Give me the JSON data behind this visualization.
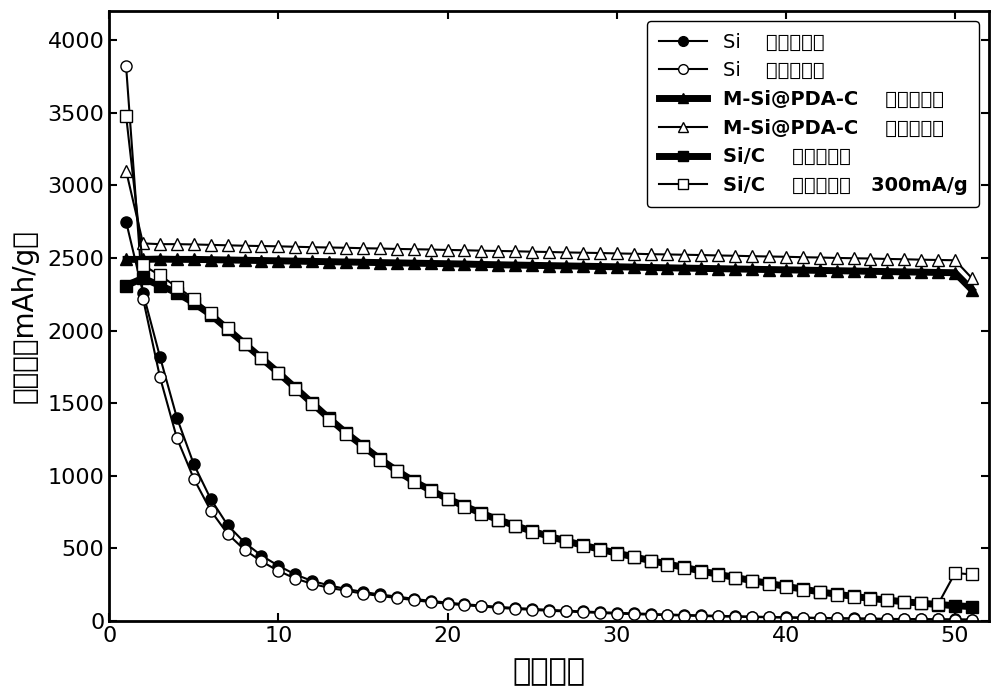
{
  "xlabel": "循环次数",
  "ylabel": "比容量（mAh/g）",
  "xlim": [
    0,
    52
  ],
  "ylim": [
    0,
    4200
  ],
  "xticks": [
    0,
    10,
    20,
    30,
    40,
    50
  ],
  "yticks": [
    0,
    500,
    1000,
    1500,
    2000,
    2500,
    3000,
    3500,
    4000
  ],
  "annotation": "300mA/g",
  "Si_charge_x": [
    1,
    2,
    3,
    4,
    5,
    6,
    7,
    8,
    9,
    10,
    11,
    12,
    13,
    14,
    15,
    16,
    17,
    18,
    19,
    20,
    21,
    22,
    23,
    24,
    25,
    26,
    27,
    28,
    29,
    30,
    31,
    32,
    33,
    34,
    35,
    36,
    37,
    38,
    39,
    40,
    41,
    42,
    43,
    44,
    45,
    46,
    47,
    48,
    49,
    50,
    51
  ],
  "Si_charge_y": [
    2750,
    2260,
    1820,
    1400,
    1080,
    840,
    660,
    540,
    450,
    380,
    320,
    275,
    245,
    220,
    200,
    182,
    168,
    152,
    138,
    126,
    115,
    106,
    97,
    89,
    83,
    76,
    71,
    65,
    60,
    56,
    52,
    48,
    44,
    41,
    38,
    35,
    32,
    30,
    27,
    25,
    23,
    21,
    19,
    17,
    16,
    14,
    13,
    12,
    11,
    10,
    9
  ],
  "Si_discharge_x": [
    1,
    2,
    3,
    4,
    5,
    6,
    7,
    8,
    9,
    10,
    11,
    12,
    13,
    14,
    15,
    16,
    17,
    18,
    19,
    20,
    21,
    22,
    23,
    24,
    25,
    26,
    27,
    28,
    29,
    30,
    31,
    32,
    33,
    34,
    35,
    36,
    37,
    38,
    39,
    40,
    41,
    42,
    43,
    44,
    45,
    46,
    47,
    48,
    49,
    50,
    51
  ],
  "Si_discharge_y": [
    3820,
    2220,
    1680,
    1260,
    980,
    760,
    600,
    490,
    410,
    345,
    292,
    255,
    228,
    208,
    188,
    172,
    158,
    143,
    130,
    118,
    108,
    100,
    90,
    83,
    76,
    70,
    65,
    60,
    55,
    50,
    47,
    43,
    40,
    37,
    34,
    31,
    29,
    27,
    25,
    23,
    21,
    19,
    17,
    16,
    14,
    13,
    12,
    11,
    10,
    9,
    8
  ],
  "MSi_charge_x": [
    1,
    2,
    3,
    4,
    5,
    6,
    7,
    8,
    9,
    10,
    11,
    12,
    13,
    14,
    15,
    16,
    17,
    18,
    19,
    20,
    21,
    22,
    23,
    24,
    25,
    26,
    27,
    28,
    29,
    30,
    31,
    32,
    33,
    34,
    35,
    36,
    37,
    38,
    39,
    40,
    41,
    42,
    43,
    44,
    45,
    46,
    47,
    48,
    49,
    50,
    51
  ],
  "MSi_charge_y": [
    2490,
    2490,
    2492,
    2490,
    2490,
    2488,
    2486,
    2484,
    2482,
    2480,
    2478,
    2476,
    2474,
    2472,
    2470,
    2468,
    2466,
    2464,
    2462,
    2460,
    2458,
    2455,
    2453,
    2451,
    2449,
    2447,
    2445,
    2443,
    2441,
    2439,
    2437,
    2434,
    2432,
    2430,
    2428,
    2426,
    2424,
    2422,
    2420,
    2418,
    2416,
    2414,
    2412,
    2410,
    2408,
    2406,
    2404,
    2402,
    2400,
    2398,
    2280
  ],
  "MSi_discharge_x": [
    1,
    2,
    3,
    4,
    5,
    6,
    7,
    8,
    9,
    10,
    11,
    12,
    13,
    14,
    15,
    16,
    17,
    18,
    19,
    20,
    21,
    22,
    23,
    24,
    25,
    26,
    27,
    28,
    29,
    30,
    31,
    32,
    33,
    34,
    35,
    36,
    37,
    38,
    39,
    40,
    41,
    42,
    43,
    44,
    45,
    46,
    47,
    48,
    49,
    50,
    51
  ],
  "MSi_discharge_y": [
    3100,
    2600,
    2595,
    2595,
    2593,
    2590,
    2587,
    2584,
    2582,
    2580,
    2577,
    2574,
    2572,
    2570,
    2567,
    2565,
    2562,
    2560,
    2558,
    2555,
    2553,
    2550,
    2548,
    2546,
    2543,
    2541,
    2538,
    2536,
    2534,
    2531,
    2529,
    2526,
    2524,
    2522,
    2520,
    2517,
    2515,
    2512,
    2510,
    2508,
    2505,
    2503,
    2500,
    2498,
    2496,
    2493,
    2491,
    2488,
    2486,
    2484,
    2360
  ],
  "SiC_charge_x": [
    1,
    2,
    3,
    4,
    5,
    6,
    7,
    8,
    9,
    10,
    11,
    12,
    13,
    14,
    15,
    16,
    17,
    18,
    19,
    20,
    21,
    22,
    23,
    24,
    25,
    26,
    27,
    28,
    29,
    30,
    31,
    32,
    33,
    34,
    35,
    36,
    37,
    38,
    39,
    40,
    41,
    42,
    43,
    44,
    45,
    46,
    47,
    48,
    49,
    50,
    51
  ],
  "SiC_charge_y": [
    2310,
    2360,
    2310,
    2260,
    2190,
    2110,
    2010,
    1910,
    1810,
    1710,
    1605,
    1500,
    1395,
    1295,
    1205,
    1115,
    1035,
    962,
    900,
    842,
    790,
    742,
    697,
    656,
    618,
    583,
    551,
    521,
    494,
    467,
    441,
    416,
    392,
    368,
    344,
    321,
    299,
    278,
    258,
    238,
    219,
    200,
    184,
    169,
    155,
    143,
    132,
    122,
    113,
    105,
    98
  ],
  "SiC_discharge_x": [
    1,
    2,
    3,
    4,
    5,
    6,
    7,
    8,
    9,
    10,
    11,
    12,
    13,
    14,
    15,
    16,
    17,
    18,
    19,
    20,
    21,
    22,
    23,
    24,
    25,
    26,
    27,
    28,
    29,
    30,
    31,
    32,
    33,
    34,
    35,
    36,
    37,
    38,
    39,
    40,
    41,
    42,
    43,
    44,
    45,
    46,
    47,
    48,
    49,
    50,
    51
  ],
  "SiC_discharge_y": [
    3480,
    2450,
    2380,
    2300,
    2220,
    2120,
    2020,
    1910,
    1810,
    1710,
    1600,
    1495,
    1385,
    1285,
    1196,
    1108,
    1030,
    958,
    896,
    838,
    786,
    738,
    693,
    652,
    614,
    578,
    547,
    517,
    490,
    463,
    437,
    412,
    388,
    364,
    340,
    317,
    295,
    274,
    253,
    233,
    215,
    197,
    181,
    167,
    154,
    143,
    133,
    124,
    116,
    330,
    320
  ],
  "figsize": [
    10.0,
    6.97
  ],
  "dpi": 100
}
